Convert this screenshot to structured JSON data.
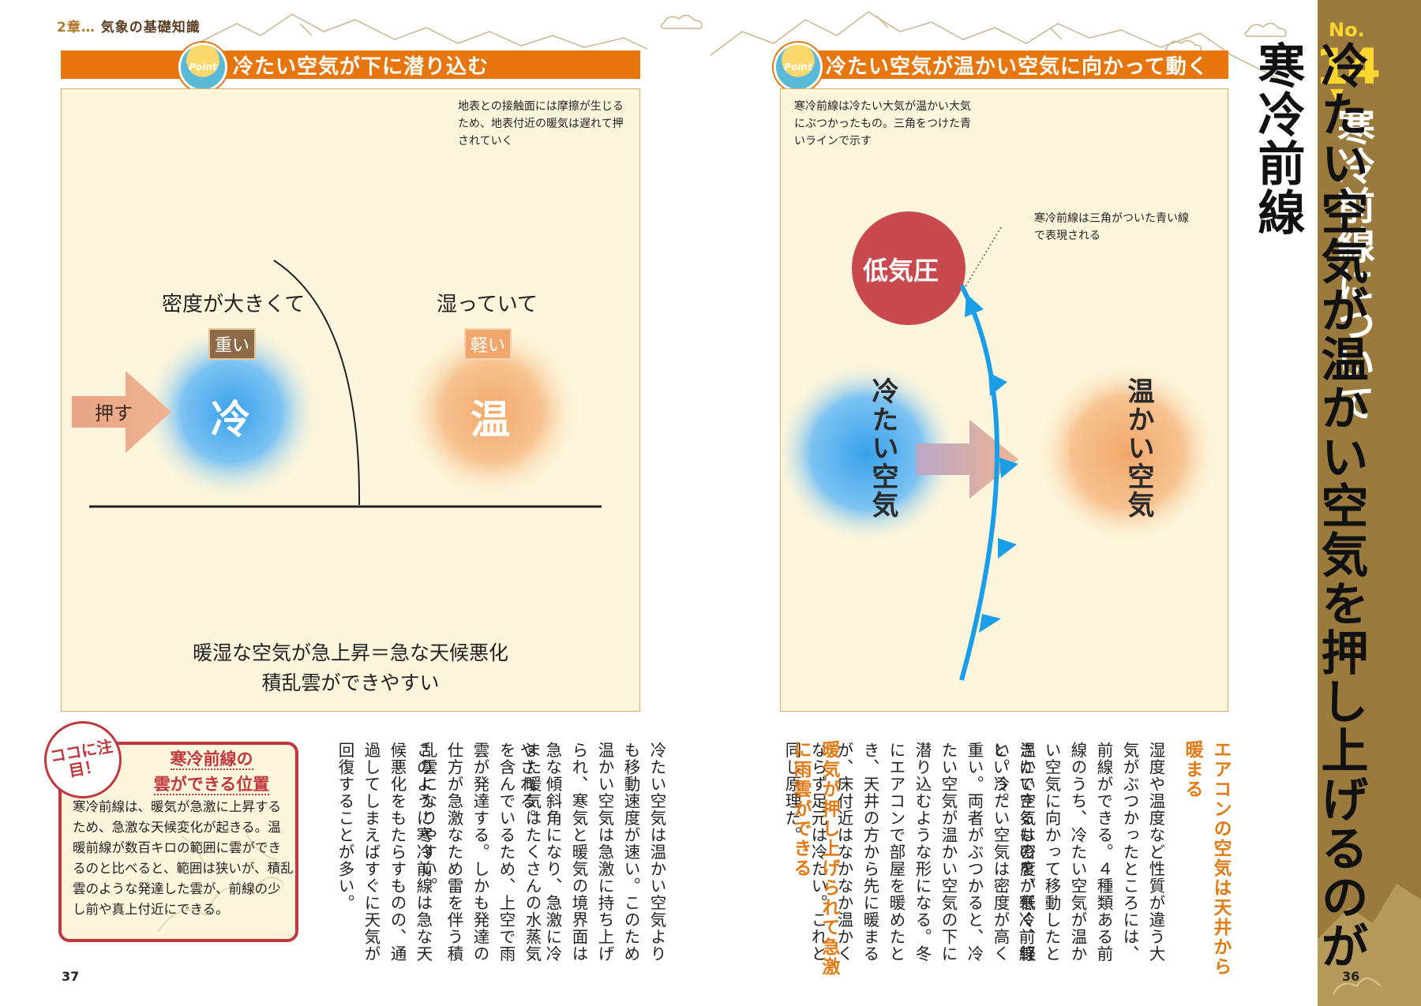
{
  "chapter": {
    "num": "2章…",
    "title": "気象の基礎知識"
  },
  "left_panel": {
    "banner": "冷たい空気が下に潜り込む",
    "point_badge": "Point",
    "friction_note": "地表との接触面には摩擦が生じるため、地表付近の暖気は遅れて押されていく",
    "cold_desc": "密度が大きくて",
    "cold_tag": "重い",
    "cold_label": "冷",
    "push_label": "押す",
    "warm_desc": "湿っていて",
    "warm_tag": "軽い",
    "warm_label": "温",
    "caption_line1": "暖湿な空気が急上昇＝急な天候悪化",
    "caption_line2": "積乱雲ができやすい"
  },
  "right_panel": {
    "banner": "冷たい空気が温かい空気に向かって動く",
    "point_badge": "Point",
    "intro_note": "寒冷前線は冷たい大気が温かい大気にぶつかったもの。三角をつけた青いラインで示す",
    "front_note": "寒冷前線は三角がついた青い線で表現される",
    "low_pressure": "低気圧",
    "cold_air": "冷たい空気",
    "warm_air": "温かい空気"
  },
  "sidebar": {
    "no_label": "No.",
    "no_number": "14",
    "arrow": "▼",
    "title": "寒冷前線について"
  },
  "main_title": "冷たい空気が温かい空気を押し上げるのが寒冷前線",
  "right_text": {
    "head1": "エアコンの空気は天井から暖まる",
    "body1": "湿度や温度など性質が違う大気がぶつかったところには、前線ができる。４種類ある前線のうち、冷たい空気が温かい空気に向かって移動したときにできるものを、寒冷前線という。",
    "body2": "温かい空気は密度が低く、軽い。冷たい空気は密度が高く重い。両者がぶつかると、冷たい空気が温かい空気の下に潜り込むような形になる。冬にエアコンで部屋を暖めたとき、天井の方から先に暖まるが、床付近はなかなか温かくならず足元は冷たい。これと同じ原理だ。",
    "head2": "暖気が押し上げられて急激に雨雲ができる"
  },
  "left_text": {
    "body1": "冷たい空気は温かい空気よりも移動速度が速い。このため温かい空気は急激に持ち上げられ、寒気と暖気の境界面は急な傾斜角になり、急激に冷やされる。",
    "body2": "また暖気はたくさんの水蒸気を含んでいるため、上空で雨雲が発達する。しかも発達の仕方が急激なため雷を伴う積乱雲になりやすい。",
    "body3": "このように寒冷前線は急な天候悪化をもたらすものの、通過してしまえばすぐに天気が回復することが多い。"
  },
  "koko": {
    "badge": "ココに注目！",
    "title_line1": "寒冷前線の",
    "title_line2": "雲ができる位置",
    "text": "寒冷前線は、暖気が急激に上昇するため、急激な天候変化が起きる。温暖前線が数百キロの範囲に雲ができるのと比べると、範囲は狭いが、積乱雲のような発達した雲が、前線の少し前や真上付近にできる。"
  },
  "page_left": "37",
  "page_right": "36",
  "colors": {
    "orange": "#e8760e",
    "brown": "#9a7a3d",
    "yellow": "#ffd530",
    "front_blue": "#1a9ee8",
    "red": "#c0373e"
  }
}
